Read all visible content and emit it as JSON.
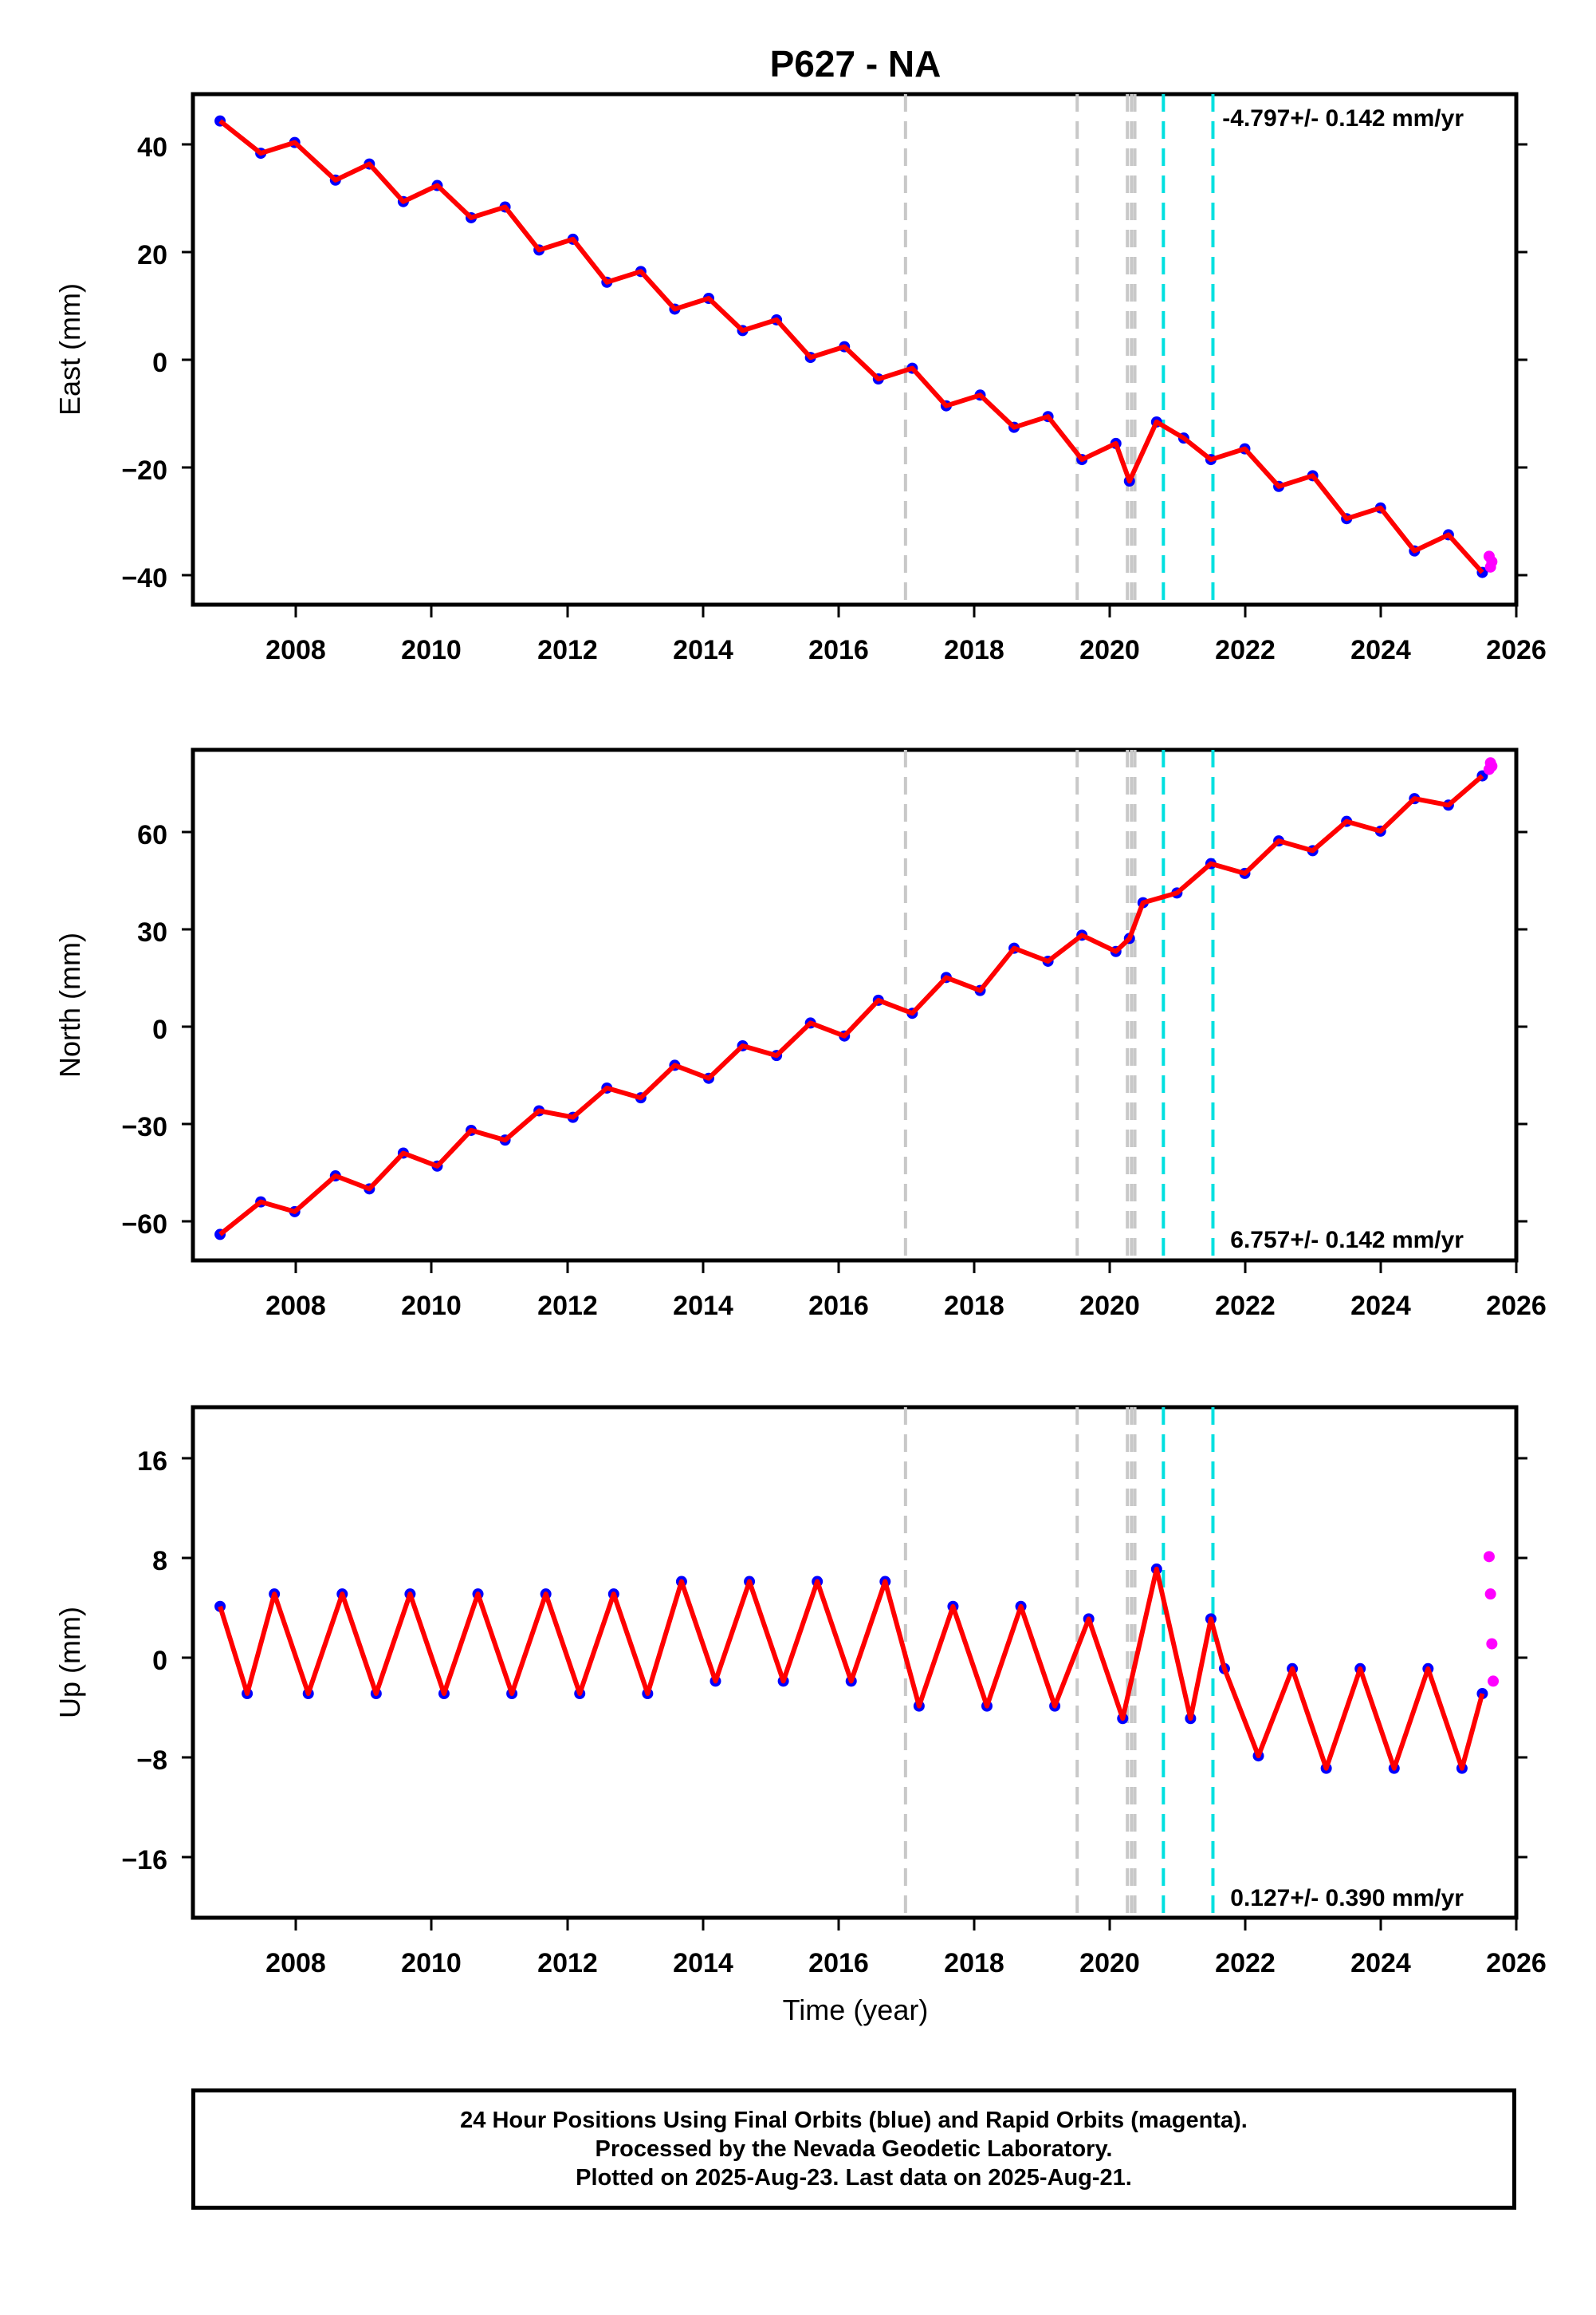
{
  "title": "P627 - NA",
  "xlabel": "Time (year)",
  "x_ticks": [
    "2008",
    "2010",
    "2012",
    "2014",
    "2016",
    "2018",
    "2020",
    "2022",
    "2024",
    "2026"
  ],
  "events": {
    "gray": [
      2017.0,
      2019.53,
      2020.27,
      2020.33,
      2020.38
    ],
    "cyan": [
      2020.8,
      2021.53
    ]
  },
  "colors": {
    "final": "#0000ff",
    "rapid": "#ff00ff",
    "model": "#ff0000",
    "gray_event": "#c8c8c8",
    "cyan_event": "#00e0e0"
  },
  "chart_data": [
    {
      "type": "scatter",
      "ylabel": "East (mm)",
      "xlim": [
        2006.5,
        2026.0
      ],
      "ylim": [
        -45,
        50
      ],
      "y_ticks": [
        "40",
        "20",
        "0",
        "−20",
        "−40"
      ],
      "rate_label": "-4.797+/- 0.142 mm/yr",
      "rate_position": "top-right",
      "series": [
        {
          "role": "final",
          "x": [
            2006.9,
            2007.5,
            2008.0,
            2008.6,
            2009.1,
            2009.6,
            2010.1,
            2010.6,
            2011.1,
            2011.6,
            2012.1,
            2012.6,
            2013.1,
            2013.6,
            2014.1,
            2014.6,
            2015.1,
            2015.6,
            2016.1,
            2016.6,
            2017.1,
            2017.6,
            2018.1,
            2018.6,
            2019.1,
            2019.6,
            2020.1,
            2020.3,
            2020.7,
            2021.1,
            2021.5,
            2022.0,
            2022.5,
            2023.0,
            2023.5,
            2024.0,
            2024.5,
            2025.0,
            2025.5
          ],
          "y": [
            45,
            39,
            41,
            34,
            37,
            30,
            33,
            27,
            29,
            21,
            23,
            15,
            17,
            10,
            12,
            6,
            8,
            1,
            3,
            -3,
            -1,
            -8,
            -6,
            -12,
            -10,
            -18,
            -15,
            -22,
            -11,
            -14,
            -18,
            -16,
            -23,
            -21,
            -29,
            -27,
            -35,
            -32,
            -39
          ]
        },
        {
          "role": "rapid",
          "x": [
            2025.6,
            2025.62,
            2025.64
          ],
          "y": [
            -36,
            -38,
            -37
          ]
        }
      ]
    },
    {
      "type": "scatter",
      "ylabel": "North (mm)",
      "xlim": [
        2006.5,
        2026.0
      ],
      "ylim": [
        -72,
        85
      ],
      "y_ticks": [
        "60",
        "30",
        "0",
        "−30",
        "−60"
      ],
      "rate_label": "6.757+/- 0.142 mm/yr",
      "rate_position": "bottom-right",
      "series": [
        {
          "role": "final",
          "x": [
            2006.9,
            2007.5,
            2008.0,
            2008.6,
            2009.1,
            2009.6,
            2010.1,
            2010.6,
            2011.1,
            2011.6,
            2012.1,
            2012.6,
            2013.1,
            2013.6,
            2014.1,
            2014.6,
            2015.1,
            2015.6,
            2016.1,
            2016.6,
            2017.1,
            2017.6,
            2018.1,
            2018.6,
            2019.1,
            2019.6,
            2020.1,
            2020.3,
            2020.5,
            2021.0,
            2021.5,
            2022.0,
            2022.5,
            2023.0,
            2023.5,
            2024.0,
            2024.5,
            2025.0,
            2025.5
          ],
          "y": [
            -64,
            -54,
            -57,
            -46,
            -50,
            -39,
            -43,
            -32,
            -35,
            -26,
            -28,
            -19,
            -22,
            -12,
            -16,
            -6,
            -9,
            1,
            -3,
            8,
            4,
            15,
            11,
            24,
            20,
            28,
            23,
            27,
            38,
            41,
            50,
            47,
            57,
            54,
            63,
            60,
            70,
            68,
            77
          ]
        },
        {
          "role": "rapid",
          "x": [
            2025.6,
            2025.62,
            2025.64
          ],
          "y": [
            79,
            81,
            80
          ]
        }
      ]
    },
    {
      "type": "scatter",
      "ylabel": "Up (mm)",
      "xlim": [
        2006.5,
        2026.0
      ],
      "ylim": [
        -21,
        20
      ],
      "y_ticks": [
        "16",
        "8",
        "0",
        "−8",
        "−16"
      ],
      "rate_label": "0.127+/- 0.390 mm/yr",
      "rate_position": "bottom-right",
      "series": [
        {
          "role": "final",
          "x": [
            2006.9,
            2007.3,
            2007.7,
            2008.2,
            2008.7,
            2009.2,
            2009.7,
            2010.2,
            2010.7,
            2011.2,
            2011.7,
            2012.2,
            2012.7,
            2013.2,
            2013.7,
            2014.2,
            2014.7,
            2015.2,
            2015.7,
            2016.2,
            2016.7,
            2017.2,
            2017.7,
            2018.2,
            2018.7,
            2019.2,
            2019.7,
            2020.2,
            2020.7,
            2021.2,
            2021.5,
            2021.7,
            2022.2,
            2022.7,
            2023.2,
            2023.7,
            2024.2,
            2024.7,
            2025.2,
            2025.5
          ],
          "y": [
            4,
            -3,
            5,
            -3,
            5,
            -3,
            5,
            -3,
            5,
            -3,
            5,
            -3,
            5,
            -3,
            6,
            -2,
            6,
            -2,
            6,
            -2,
            6,
            -4,
            4,
            -4,
            4,
            -4,
            3,
            -5,
            7,
            -5,
            3,
            -1,
            -8,
            -1,
            -9,
            -1,
            -9,
            -1,
            -9,
            -3
          ]
        },
        {
          "role": "rapid",
          "x": [
            2025.6,
            2025.62,
            2025.64,
            2025.66
          ],
          "y": [
            8,
            5,
            1,
            -2
          ]
        }
      ]
    }
  ],
  "footer": {
    "line1": "24 Hour Positions Using Final Orbits (blue) and Rapid Orbits (magenta).",
    "line2": "Processed by the Nevada Geodetic Laboratory.",
    "line3": "Plotted on 2025-Aug-23. Last data on 2025-Aug-21."
  }
}
